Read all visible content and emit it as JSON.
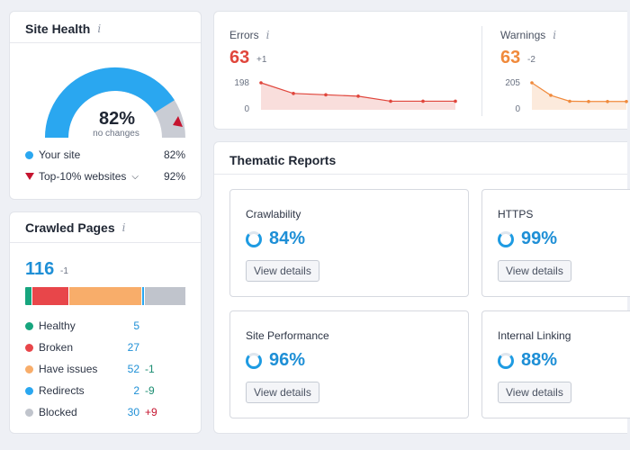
{
  "site_health": {
    "title": "Site Health",
    "info_icon": "i",
    "score": "82%",
    "score_sub": "no changes",
    "gauge_fraction": 0.82,
    "legend": [
      {
        "label": "Your site",
        "value": "82%",
        "marker": "dot",
        "color": "#2aa7f0"
      },
      {
        "label": "Top-10% websites",
        "value": "92%",
        "marker": "triangle",
        "color": "#c5142f"
      }
    ]
  },
  "crawled_pages": {
    "title": "Crawled Pages",
    "info_icon": "i",
    "total": "116",
    "total_delta": "-1",
    "rows": [
      {
        "label": "Healthy",
        "count": "5",
        "change": "",
        "color": "#17a57e"
      },
      {
        "label": "Broken",
        "count": "27",
        "change": "",
        "color": "#e8464a"
      },
      {
        "label": "Have issues",
        "count": "52",
        "change": "-1",
        "color": "#f8ad6a"
      },
      {
        "label": "Redirects",
        "count": "2",
        "change": "-9",
        "color": "#2aa7f0"
      },
      {
        "label": "Blocked",
        "count": "30",
        "change": "+9",
        "color": "#c0c4cc"
      }
    ]
  },
  "errors": {
    "label": "Errors",
    "info_icon": "i",
    "value": "63",
    "delta": "+1",
    "axis_max": "198",
    "axis_min": "0",
    "color": "#e0463c",
    "trend": [
      198,
      120,
      110,
      100,
      63,
      63,
      63
    ]
  },
  "warnings": {
    "label": "Warnings",
    "info_icon": "i",
    "value": "63",
    "delta": "-2",
    "axis_max": "205",
    "axis_min": "0",
    "color": "#f08a3c",
    "trend": [
      205,
      110,
      65,
      63,
      63,
      63
    ]
  },
  "thematic_reports": {
    "title": "Thematic Reports",
    "items": [
      {
        "name": "Crawlability",
        "value": "84%",
        "button": "View details"
      },
      {
        "name": "HTTPS",
        "value": "99%",
        "button": "View details"
      },
      {
        "name": "Site Performance",
        "value": "96%",
        "button": "View details"
      },
      {
        "name": "Internal Linking",
        "value": "88%",
        "button": "View details"
      }
    ]
  }
}
